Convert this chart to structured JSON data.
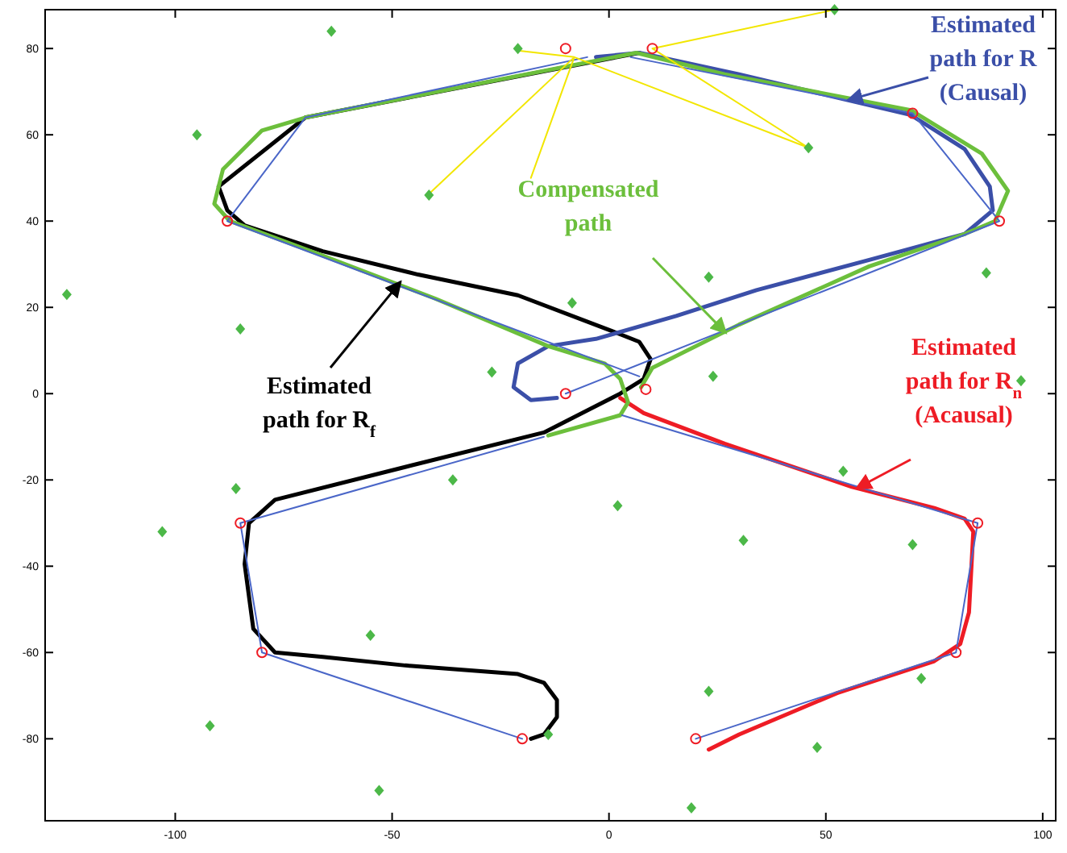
{
  "chart_data": {
    "type": "line",
    "xlim": [
      -130,
      103
    ],
    "ylim": [
      -99,
      89
    ],
    "xticks": [
      -100,
      -50,
      0,
      50,
      100
    ],
    "yticks": [
      -80,
      -60,
      -40,
      -20,
      0,
      20,
      40,
      60,
      80
    ],
    "grid": false,
    "marker": "none",
    "series": [
      {
        "color": "#000000",
        "x": [
          7,
          -70,
          -90,
          -88,
          -84,
          -66,
          -44,
          -21,
          0.7,
          7,
          9.6,
          8,
          2.6,
          -15,
          -47,
          -77,
          -83,
          -84,
          -82,
          -77,
          -66,
          -47,
          -21,
          -15,
          -12,
          -12,
          -15,
          -18
        ],
        "values": [
          79,
          64,
          48,
          42.5,
          39,
          33,
          27.6,
          22.8,
          14.5,
          12,
          8,
          3.4,
          0,
          -9,
          -17,
          -24.6,
          -30,
          -39.5,
          -54.5,
          -60,
          -61,
          -63,
          -65,
          -67,
          -71,
          -75,
          -79,
          -80
        ]
      },
      {
        "color": "#3b4fa8",
        "x": [
          -3,
          7,
          30,
          69.6,
          82,
          87.8,
          88.5,
          82,
          60,
          34,
          15.5,
          -3,
          -14,
          -21,
          -22,
          -18,
          -12
        ],
        "values": [
          78,
          79,
          74,
          64.6,
          56.7,
          48,
          42.5,
          37,
          31,
          24,
          18,
          12.7,
          11,
          7,
          1.5,
          -1.5,
          -1
        ]
      },
      {
        "color": "#ee1c25",
        "x": [
          2.6,
          8,
          26.7,
          56,
          75,
          82,
          84,
          83,
          81,
          75,
          52.6,
          30,
          23
        ],
        "values": [
          -1,
          -4.5,
          -11.6,
          -21.6,
          -26.5,
          -29,
          -32,
          -50.7,
          -58,
          -62,
          -69.4,
          -79,
          -82.5
        ]
      },
      {
        "color": "#6cbf3c",
        "x": [
          -14,
          2.6,
          4.4,
          2.6,
          -1,
          -14,
          -40,
          -66,
          -87.4,
          -91,
          -89,
          -80,
          -70,
          6.3,
          26.7,
          69.6,
          86,
          92,
          89,
          82,
          60,
          30,
          10,
          7.4
        ],
        "values": [
          -9.7,
          -5,
          -2,
          3.4,
          7,
          11,
          22,
          32,
          40,
          44,
          52,
          61,
          64,
          79,
          74,
          65.7,
          55.6,
          47,
          40,
          37,
          29.5,
          16,
          6,
          1.5
        ]
      },
      {
        "color": "#4a66c8",
        "x": [
          7,
          -88,
          -70,
          -5
        ],
        "values": [
          4,
          40,
          64,
          78
        ]
      },
      {
        "color": "#4a66c8",
        "x": [
          5,
          70,
          90,
          -10
        ],
        "values": [
          78,
          65,
          40,
          0
        ]
      },
      {
        "color": "#4a66c8",
        "x": [
          -15,
          -85,
          -80,
          -20
        ],
        "values": [
          -10,
          -30,
          -60,
          -80
        ]
      },
      {
        "color": "#4a66c8",
        "x": [
          20,
          80,
          85,
          3
        ],
        "values": [
          -80,
          -60,
          -30,
          -5
        ]
      },
      {
        "color": "#f2e600",
        "x": [
          -41.5,
          -8,
          -18,
          null,
          -21,
          -8,
          46,
          null,
          52,
          10,
          46
        ],
        "values": [
          46.3,
          78,
          50,
          null,
          79.5,
          78,
          57,
          null,
          89,
          80,
          57
        ]
      },
      {
        "type": "scatter",
        "marker": "circle",
        "color": "#ee1c25",
        "x": [
          -10,
          10,
          70,
          90,
          -10,
          -88,
          -85,
          -80,
          -20,
          20,
          80,
          85,
          8.5
        ],
        "values": [
          80,
          80,
          65,
          40,
          0,
          40,
          -30,
          -60,
          -80,
          -80,
          -60,
          -30,
          1
        ]
      },
      {
        "type": "scatter",
        "marker": "diamond",
        "color": "#4cb848",
        "x": [
          -64,
          -95,
          -125,
          -85,
          -41.5,
          -21,
          52,
          46,
          87,
          95,
          23,
          -8.5,
          -27,
          24,
          -86,
          -103,
          -36,
          2,
          31,
          54,
          70,
          -55,
          -92,
          -53,
          -14,
          23,
          48,
          72,
          19
        ],
        "values": [
          84,
          60,
          23,
          15,
          46,
          80,
          89,
          57,
          28,
          3,
          27,
          21,
          5,
          4,
          -22,
          -32,
          -20,
          -26,
          -34,
          -18,
          -35,
          -56,
          -77,
          -92,
          -79,
          -69,
          -82,
          -66,
          -96
        ]
      }
    ],
    "annotations": [
      {
        "text": "Estimated\npath for R$_{f}$",
        "x": -48,
        "y": 26
      },
      {
        "text": "Compensated\npath",
        "x": 27,
        "y": 14
      },
      {
        "text": "Estimated\npath for R\n(Causal)",
        "x": 55,
        "y": 68
      },
      {
        "text": "Estimated\npath for R$_{n}$\n(Acausal)",
        "x": 57,
        "y": -22
      }
    ]
  }
}
